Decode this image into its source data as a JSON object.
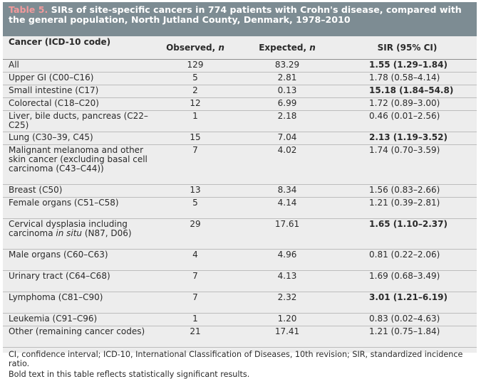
{
  "title": {
    "label": "Table 5.",
    "text": "SIRs of site-specific cancers in 774 patients with Crohn's disease, compared with the general population, North Jutland County, Denmark, 1978–2010"
  },
  "header": {
    "col1": "Cancer (ICD-10 code)",
    "col2": "Observed, n",
    "col3": "Expected, n",
    "col4": "SIR (95% CI)"
  },
  "rows": [
    {
      "cancer": "All",
      "observed": "129",
      "expected": "83.29",
      "sir": "1.55 (1.29–1.84)",
      "bold": true,
      "h": 18
    },
    {
      "cancer": "Upper GI (C00–C16)",
      "observed": "5",
      "expected": "2.81",
      "sir": "1.78 (0.58–4.14)",
      "bold": false,
      "h": 18
    },
    {
      "cancer": "Small intestine (C17)",
      "observed": "2",
      "expected": "0.13",
      "sir": "15.18 (1.84–54.8)",
      "bold": true,
      "h": 18
    },
    {
      "cancer": "Colorectal (C18–C20)",
      "observed": "12",
      "expected": "6.99",
      "sir": "1.72 (0.89–3.00)",
      "bold": false,
      "h": 18
    },
    {
      "cancer": "Liver, bile ducts, pancreas (C22–C25)",
      "observed": "1",
      "expected": "2.18",
      "sir": "0.46 (0.01–2.56)",
      "bold": false,
      "h": 30
    },
    {
      "cancer": "Lung (C30–39, C45)",
      "observed": "15",
      "expected": "7.04",
      "sir": "2.13 (1.19–3.52)",
      "bold": true,
      "h": 18
    },
    {
      "cancer": "Malignant melanoma and other skin cancer (excluding basal cell carcinoma (C43–C44))",
      "observed": "7",
      "expected": "4.02",
      "sir": "1.74 (0.70–3.59)",
      "bold": false,
      "h": 56
    },
    {
      "cancer": "Breast (C50)",
      "observed": "13",
      "expected": "8.34",
      "sir": "1.56 (0.83–2.66)",
      "bold": false,
      "h": 18
    },
    {
      "cancer": "Female organs (C51–C58)",
      "observed": "5",
      "expected": "4.14",
      "sir": "1.21 (0.39–2.81)",
      "bold": false,
      "h": 30
    },
    {
      "cancer": "Cervical dysplasia including carcinoma in situ (N87, D06)",
      "observed": "29",
      "expected": "17.61",
      "sir": "1.65 (1.10–2.37)",
      "bold": true,
      "h": 43
    },
    {
      "cancer": "Male organs (C60–C63)",
      "observed": "4",
      "expected": "4.96",
      "sir": "0.81 (0.22–2.06)",
      "bold": false,
      "h": 30
    },
    {
      "cancer": "Urinary tract (C64–C68)",
      "observed": "7",
      "expected": "4.13",
      "sir": "1.69 (0.68–3.49)",
      "bold": false,
      "h": 30
    },
    {
      "cancer": "Lymphoma (C81–C90)",
      "observed": "7",
      "expected": "2.32",
      "sir": "3.01 (1.21–6.19)",
      "bold": true,
      "h": 30
    },
    {
      "cancer": "Leukemia (C91–C96)",
      "observed": "1",
      "expected": "1.20",
      "sir": "0.83 (0.02–4.63)",
      "bold": false,
      "h": 18
    },
    {
      "cancer": "Other (remaining cancer codes)",
      "observed": "21",
      "expected": "17.41",
      "sir": "1.21 (0.75–1.84)",
      "bold": false,
      "h": 30
    }
  ],
  "footnotes": [
    "CI, confidence interval; ICD-10, International Classification of Diseases, 10th revision; SIR, standardized incidence ratio.",
    "Bold text in this table reflects statistically significant results."
  ]
}
